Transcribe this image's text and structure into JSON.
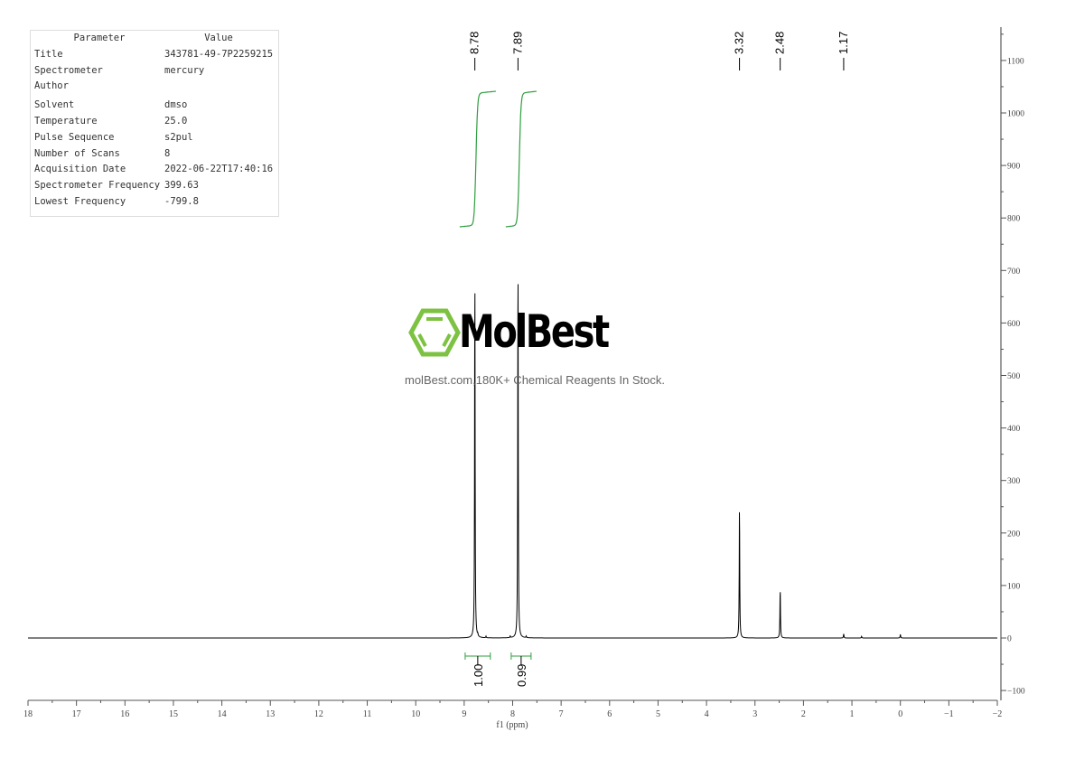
{
  "parameters": {
    "header": [
      "Parameter",
      "Value"
    ],
    "rows": [
      [
        "Title",
        "343781-49-7P2259215"
      ],
      [
        "Spectrometer",
        "mercury"
      ],
      [
        "Author",
        ""
      ],
      [
        "Solvent",
        "dmso"
      ],
      [
        "Temperature",
        "25.0"
      ],
      [
        "Pulse Sequence",
        "s2pul"
      ],
      [
        "Number of Scans",
        "8"
      ],
      [
        "Acquisition Date",
        "2022-06-22T17:40:16"
      ],
      [
        "Spectrometer Frequency",
        "399.63"
      ],
      [
        "Lowest Frequency",
        "-799.8"
      ]
    ]
  },
  "watermark": {
    "brand": "MolBest",
    "tagline": "molBest.com,180K+ Chemical Reagents In Stock.",
    "color": "#7dc242"
  },
  "chart_data": {
    "type": "line",
    "xlabel": "f1 (ppm)",
    "xlim": [
      18,
      -2
    ],
    "ylim": [
      -110,
      1170
    ],
    "xticks": [
      18,
      17,
      16,
      15,
      14,
      13,
      12,
      11,
      10,
      9,
      8,
      7,
      6,
      5,
      4,
      3,
      2,
      1,
      0,
      -1,
      -2
    ],
    "yticks": [
      -100,
      0,
      100,
      200,
      300,
      400,
      500,
      600,
      700,
      800,
      900,
      1000,
      1100
    ],
    "peaks": [
      {
        "ppm": 8.78,
        "height": 716
      },
      {
        "ppm": 7.89,
        "height": 737
      },
      {
        "ppm": 3.32,
        "height": 255
      },
      {
        "ppm": 2.48,
        "height": 96
      },
      {
        "ppm": 1.17,
        "height": 8
      },
      {
        "ppm": 0.8,
        "height": 3
      },
      {
        "ppm": 0.0,
        "height": 7
      }
    ],
    "peak_labels": [
      "8.78",
      "7.89",
      "3.32",
      "2.48",
      "1.17"
    ],
    "integrals": [
      {
        "from": 8.98,
        "to": 8.46,
        "value": "1.00"
      },
      {
        "from": 8.03,
        "to": 7.62,
        "value": "0.99"
      }
    ],
    "colors": {
      "spectrum": "#000000",
      "integral": "#2e9e3e"
    }
  }
}
